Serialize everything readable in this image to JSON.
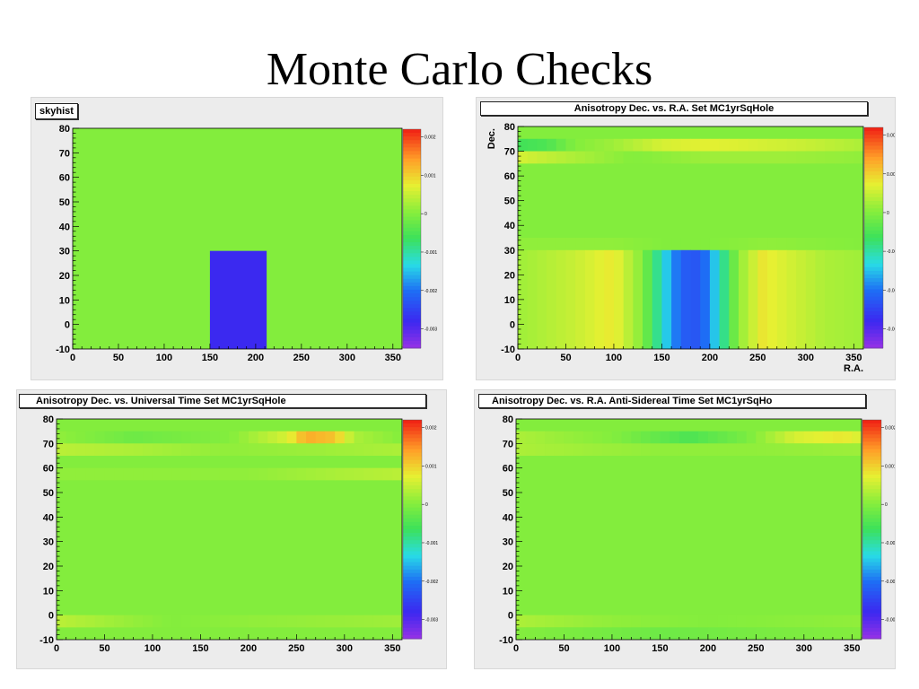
{
  "slide_title": "Monte Carlo Checks",
  "chart_data": [
    {
      "type": "heatmap",
      "title": "skyhist",
      "xlabel": "",
      "ylabel": "",
      "xlim": [
        0,
        360
      ],
      "ylim": [
        -10,
        80
      ],
      "x_ticks": [
        0,
        50,
        100,
        150,
        200,
        250,
        300,
        350
      ],
      "y_ticks": [
        -10,
        0,
        10,
        20,
        30,
        40,
        50,
        60,
        70,
        80
      ],
      "z_ticks": [
        0.002,
        0.001,
        0,
        -0.001,
        -0.002,
        -0.003
      ],
      "z_tick_labels": [
        "0.002",
        "0.001",
        "0",
        "-0.001",
        "-0.002",
        "-0.003"
      ],
      "zlim": [
        -0.0035,
        0.0022
      ],
      "background_value": 0.0,
      "regions": [
        {
          "ra": [
            150,
            212
          ],
          "dec": [
            -10,
            30
          ],
          "value": -0.0028
        }
      ]
    },
    {
      "type": "heatmap",
      "title": "Anisotropy Dec. vs. R.A.  Set MC1yrSqHole",
      "xlabel": "R.A.",
      "ylabel": "Dec.",
      "xlim": [
        0,
        360
      ],
      "ylim": [
        -10,
        80
      ],
      "x_ticks": [
        0,
        50,
        100,
        150,
        200,
        250,
        300,
        350
      ],
      "y_ticks": [
        -10,
        0,
        10,
        20,
        30,
        40,
        50,
        60,
        70,
        80
      ],
      "z_ticks": [
        0.002,
        0.001,
        0,
        -0.001,
        -0.002,
        -0.003
      ],
      "z_tick_labels": [
        "0.002",
        "0.001",
        "0",
        "-0.001",
        "-0.002",
        "-0.003"
      ],
      "zlim": [
        -0.0035,
        0.0022
      ],
      "dec_bands": [
        -10,
        -5,
        0,
        5,
        10,
        15,
        20,
        25,
        30,
        35,
        40,
        45,
        50,
        55,
        60,
        65,
        70,
        75,
        80
      ],
      "ra_bins": 36,
      "band_rows": [
        {
          "lo": 70,
          "hi": 75,
          "points": [
            [
              0,
              -0.0006
            ],
            [
              30,
              -0.0005
            ],
            [
              60,
              0.0
            ],
            [
              100,
              0.0002
            ],
            [
              150,
              0.0006
            ],
            [
              200,
              0.0007
            ],
            [
              250,
              0.0006
            ],
            [
              300,
              0.0005
            ],
            [
              360,
              0.0003
            ]
          ]
        },
        {
          "lo": 65,
          "hi": 70,
          "points": [
            [
              0,
              0.0006
            ],
            [
              60,
              0.0003
            ],
            [
              120,
              0.0
            ],
            [
              200,
              0.0002
            ],
            [
              280,
              0.0002
            ],
            [
              360,
              0.0001
            ]
          ]
        },
        {
          "lo": 30,
          "hi": 35,
          "points": [
            [
              0,
              0.0001
            ],
            [
              100,
              0.0001
            ],
            [
              150,
              0.0
            ],
            [
              200,
              0.0
            ],
            [
              260,
              0.0001
            ],
            [
              360,
              0.0
            ]
          ]
        },
        {
          "lo": -10,
          "hi": 30,
          "points": [
            [
              0,
              0.0002
            ],
            [
              60,
              0.0005
            ],
            [
              100,
              0.0008
            ],
            [
              130,
              0.0
            ],
            [
              150,
              -0.0012
            ],
            [
              170,
              -0.0022
            ],
            [
              190,
              -0.0023
            ],
            [
              210,
              -0.0012
            ],
            [
              230,
              0.0001
            ],
            [
              255,
              0.0008
            ],
            [
              280,
              0.0006
            ],
            [
              320,
              0.0003
            ],
            [
              360,
              0.0002
            ]
          ]
        }
      ]
    },
    {
      "type": "heatmap",
      "title": "Anisotropy Dec. vs. Universal Time Set MC1yrSqHole",
      "xlabel": "",
      "ylabel": "",
      "xlim": [
        0,
        360
      ],
      "ylim": [
        -10,
        80
      ],
      "x_ticks": [
        0,
        50,
        100,
        150,
        200,
        250,
        300,
        350
      ],
      "y_ticks": [
        -10,
        0,
        10,
        20,
        30,
        40,
        50,
        60,
        70,
        80
      ],
      "z_ticks": [
        0.002,
        0.001,
        0,
        -0.001,
        -0.002,
        -0.003
      ],
      "z_tick_labels": [
        "0.002",
        "0.001",
        "0",
        "-0.001",
        "-0.002",
        "-0.003"
      ],
      "zlim": [
        -0.0035,
        0.0022
      ],
      "ra_bins": 36,
      "band_rows": [
        {
          "lo": 70,
          "hi": 75,
          "points": [
            [
              0,
              0.0001
            ],
            [
              80,
              -0.0002
            ],
            [
              180,
              0.0
            ],
            [
              240,
              0.0006
            ],
            [
              260,
              0.0013
            ],
            [
              290,
              0.0011
            ],
            [
              310,
              0.0003
            ],
            [
              360,
              0.0
            ]
          ]
        },
        {
          "lo": 65,
          "hi": 70,
          "points": [
            [
              0,
              0.0004
            ],
            [
              80,
              0.0003
            ],
            [
              180,
              0.0001
            ],
            [
              280,
              0.0002
            ],
            [
              360,
              0.0003
            ]
          ]
        },
        {
          "lo": 55,
          "hi": 60,
          "points": [
            [
              0,
              0.0001
            ],
            [
              200,
              0.0001
            ],
            [
              300,
              0.0003
            ],
            [
              360,
              0.0004
            ]
          ]
        },
        {
          "lo": -5,
          "hi": 0,
          "points": [
            [
              0,
              0.0004
            ],
            [
              60,
              0.0002
            ],
            [
              120,
              0.0
            ],
            [
              200,
              0.0001
            ],
            [
              360,
              0.0002
            ]
          ]
        }
      ]
    },
    {
      "type": "heatmap",
      "title": "Anisotropy Dec. vs. R.A.  Anti-Sidereal Time Set MC1yrSqHo",
      "xlabel": "",
      "ylabel": "",
      "xlim": [
        0,
        360
      ],
      "ylim": [
        -10,
        80
      ],
      "x_ticks": [
        0,
        50,
        100,
        150,
        200,
        250,
        300,
        350
      ],
      "y_ticks": [
        -10,
        0,
        10,
        20,
        30,
        40,
        50,
        60,
        70,
        80
      ],
      "z_ticks": [
        0.002,
        0.001,
        0,
        -0.001,
        -0.002,
        -0.003
      ],
      "z_tick_labels": [
        "0.002",
        "0.001",
        "0",
        "-0.001",
        "-0.002",
        "-0.003"
      ],
      "zlim": [
        -0.0035,
        0.0022
      ],
      "ra_bins": 36,
      "band_rows": [
        {
          "lo": 70,
          "hi": 75,
          "points": [
            [
              0,
              0.0003
            ],
            [
              100,
              0.0
            ],
            [
              180,
              -0.0005
            ],
            [
              240,
              -0.0001
            ],
            [
              290,
              0.0006
            ],
            [
              340,
              0.0008
            ],
            [
              360,
              0.0006
            ]
          ]
        },
        {
          "lo": 65,
          "hi": 70,
          "points": [
            [
              0,
              0.0003
            ],
            [
              150,
              0.0001
            ],
            [
              250,
              0.0001
            ],
            [
              360,
              0.0002
            ]
          ]
        },
        {
          "lo": -5,
          "hi": 0,
          "points": [
            [
              0,
              0.0003
            ],
            [
              100,
              0.0001
            ],
            [
              200,
              0.0
            ],
            [
              360,
              0.0001
            ]
          ]
        },
        {
          "lo": -10,
          "hi": -5,
          "points": [
            [
              0,
              0.0
            ],
            [
              150,
              -0.0002
            ],
            [
              250,
              -0.0001
            ],
            [
              360,
              0.0
            ]
          ]
        }
      ]
    }
  ]
}
